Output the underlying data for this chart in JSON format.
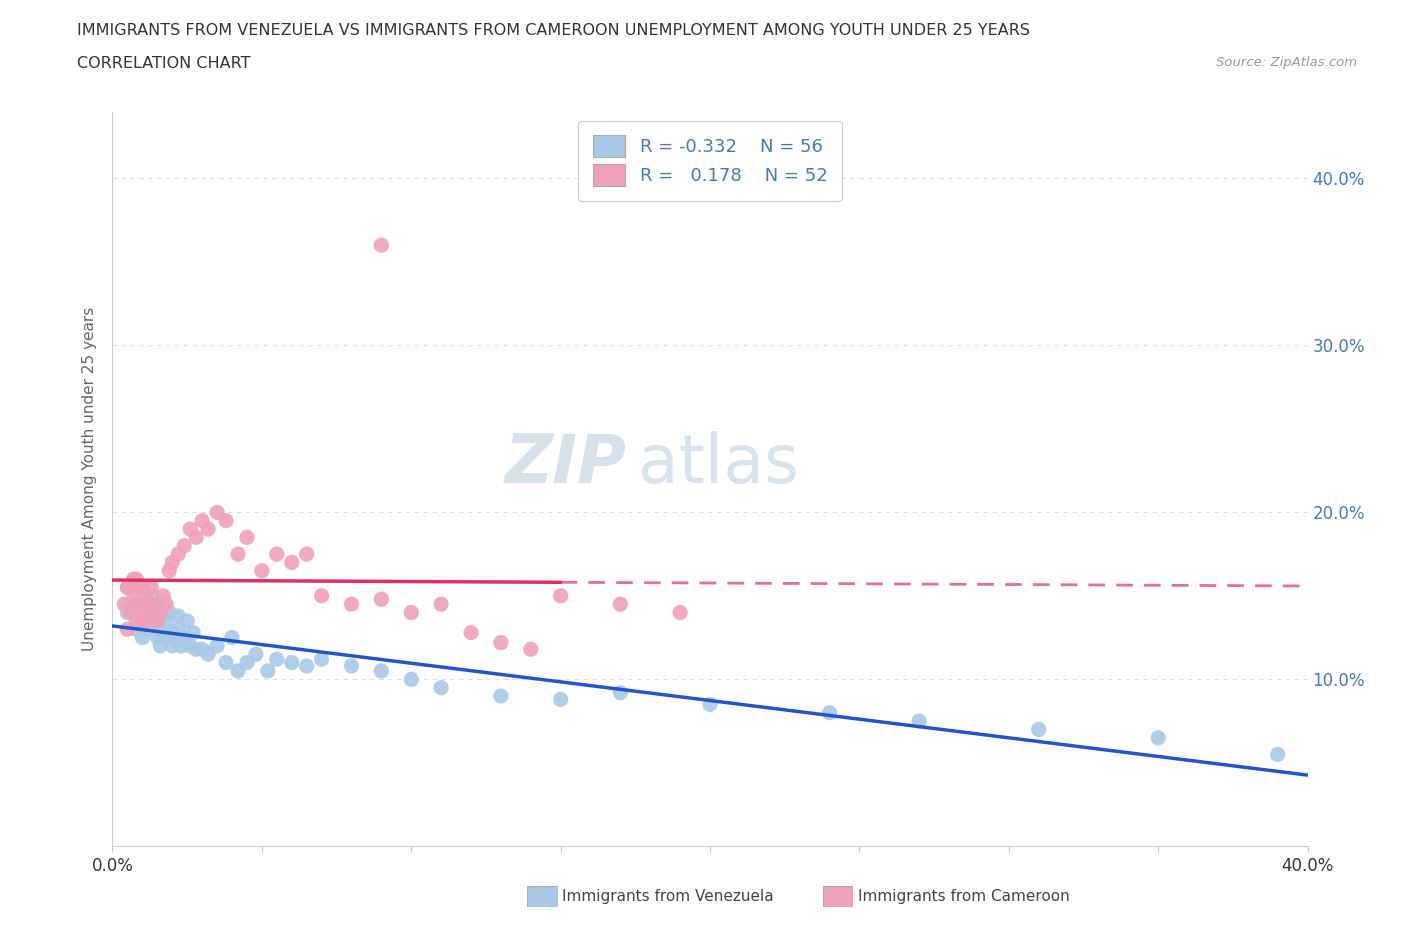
{
  "title_line1": "IMMIGRANTS FROM VENEZUELA VS IMMIGRANTS FROM CAMEROON UNEMPLOYMENT AMONG YOUTH UNDER 25 YEARS",
  "title_line2": "CORRELATION CHART",
  "source_text": "Source: ZipAtlas.com",
  "ylabel": "Unemployment Among Youth under 25 years",
  "xlim": [
    0.0,
    0.4
  ],
  "ylim": [
    0.0,
    0.44
  ],
  "ytick_positions": [
    0.1,
    0.2,
    0.3,
    0.4
  ],
  "ytick_labels": [
    "10.0%",
    "20.0%",
    "30.0%",
    "40.0%"
  ],
  "venezuela_color": "#a8c8e8",
  "cameroon_color": "#f0a0b8",
  "venezuela_line_color": "#2255cc",
  "cameroon_line_color": "#e03060",
  "R_venezuela": -0.332,
  "N_venezuela": 56,
  "R_cameroon": 0.178,
  "N_cameroon": 52,
  "legend_label_venezuela": "Immigrants from Venezuela",
  "legend_label_cameroon": "Immigrants from Cameroon",
  "watermark_zip": "ZIP",
  "watermark_atlas": "atlas",
  "venezuela_x": [
    0.005,
    0.005,
    0.008,
    0.008,
    0.01,
    0.01,
    0.01,
    0.01,
    0.012,
    0.012,
    0.013,
    0.015,
    0.015,
    0.015,
    0.016,
    0.016,
    0.018,
    0.018,
    0.019,
    0.02,
    0.02,
    0.021,
    0.022,
    0.022,
    0.023,
    0.024,
    0.025,
    0.026,
    0.027,
    0.028,
    0.03,
    0.032,
    0.035,
    0.038,
    0.04,
    0.042,
    0.045,
    0.048,
    0.052,
    0.055,
    0.06,
    0.065,
    0.07,
    0.08,
    0.09,
    0.1,
    0.11,
    0.13,
    0.15,
    0.17,
    0.2,
    0.24,
    0.27,
    0.31,
    0.35,
    0.39
  ],
  "venezuela_y": [
    0.14,
    0.155,
    0.13,
    0.145,
    0.125,
    0.135,
    0.145,
    0.155,
    0.13,
    0.14,
    0.15,
    0.125,
    0.135,
    0.145,
    0.12,
    0.13,
    0.125,
    0.135,
    0.14,
    0.12,
    0.128,
    0.125,
    0.13,
    0.138,
    0.12,
    0.125,
    0.135,
    0.12,
    0.128,
    0.118,
    0.118,
    0.115,
    0.12,
    0.11,
    0.125,
    0.105,
    0.11,
    0.115,
    0.105,
    0.112,
    0.11,
    0.108,
    0.112,
    0.108,
    0.105,
    0.1,
    0.095,
    0.09,
    0.088,
    0.092,
    0.085,
    0.08,
    0.075,
    0.07,
    0.065,
    0.055
  ],
  "cameroon_x": [
    0.004,
    0.005,
    0.005,
    0.006,
    0.007,
    0.007,
    0.008,
    0.008,
    0.009,
    0.009,
    0.01,
    0.01,
    0.01,
    0.011,
    0.011,
    0.012,
    0.012,
    0.013,
    0.014,
    0.015,
    0.015,
    0.016,
    0.017,
    0.018,
    0.019,
    0.02,
    0.022,
    0.024,
    0.026,
    0.028,
    0.03,
    0.032,
    0.035,
    0.038,
    0.042,
    0.045,
    0.05,
    0.055,
    0.06,
    0.065,
    0.07,
    0.08,
    0.09,
    0.1,
    0.11,
    0.12,
    0.13,
    0.14,
    0.15,
    0.17,
    0.19,
    0.09
  ],
  "cameroon_y": [
    0.145,
    0.13,
    0.155,
    0.14,
    0.15,
    0.16,
    0.135,
    0.16,
    0.145,
    0.155,
    0.135,
    0.145,
    0.155,
    0.14,
    0.15,
    0.135,
    0.145,
    0.155,
    0.14,
    0.135,
    0.145,
    0.14,
    0.15,
    0.145,
    0.165,
    0.17,
    0.175,
    0.18,
    0.19,
    0.185,
    0.195,
    0.19,
    0.2,
    0.195,
    0.175,
    0.185,
    0.165,
    0.175,
    0.17,
    0.175,
    0.15,
    0.145,
    0.148,
    0.14,
    0.145,
    0.128,
    0.122,
    0.118,
    0.15,
    0.145,
    0.14,
    0.36
  ],
  "grid_color": "#dddddd",
  "spine_color": "#cccccc",
  "text_color": "#333333",
  "right_axis_color": "#4477cc"
}
